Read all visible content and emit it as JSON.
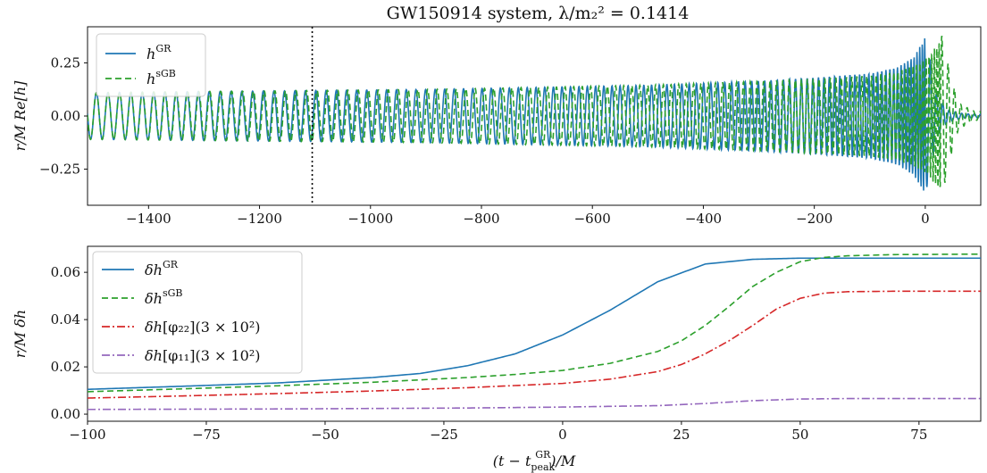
{
  "chart_data": [
    {
      "type": "line",
      "title": "GW150914 system, λ/m₂² = 0.1414",
      "ylabel": "r/M Re[h]",
      "xlabel": "",
      "xlim": [
        -1510,
        100
      ],
      "ylim": [
        -0.42,
        0.42
      ],
      "xticks": [
        -1400,
        -1200,
        -1000,
        -800,
        -600,
        -400,
        -200,
        0
      ],
      "yticks": [
        -0.25,
        0.0,
        0.25
      ],
      "xtick_labels": [
        "−1400",
        "−1200",
        "−1000",
        "−800",
        "−600",
        "−400",
        "−200",
        "0"
      ],
      "ytick_labels": [
        "−0.25",
        "0.00",
        "0.25"
      ],
      "vline_x": -1105,
      "legend_position": "upper-left",
      "grid": false,
      "series": [
        {
          "name": "h",
          "name_sup": "GR",
          "color": "#1f77b4",
          "style": "solid",
          "x": [
            -1500,
            -1300,
            -1100,
            -900,
            -700,
            -500,
            -300,
            -200,
            -100,
            -50,
            -20,
            0,
            10,
            20,
            40,
            70,
            90
          ],
          "amplitude": [
            0.11,
            0.115,
            0.12,
            0.125,
            0.135,
            0.145,
            0.165,
            0.18,
            0.2,
            0.23,
            0.28,
            0.37,
            0.25,
            0.1,
            0.03,
            0.01,
            0.01
          ]
        },
        {
          "name": "h",
          "name_sup": "sGB",
          "color": "#2ca02c",
          "style": "dashed",
          "x": [
            -1500,
            -1300,
            -1100,
            -900,
            -700,
            -500,
            -300,
            -200,
            -100,
            -50,
            -20,
            0,
            20,
            30,
            45,
            60,
            90
          ],
          "amplitude": [
            0.11,
            0.115,
            0.12,
            0.125,
            0.135,
            0.145,
            0.163,
            0.175,
            0.19,
            0.21,
            0.24,
            0.27,
            0.33,
            0.38,
            0.2,
            0.06,
            0.02
          ]
        }
      ]
    },
    {
      "type": "line",
      "title": "",
      "ylabel": "r/M δh",
      "xlabel": "(t − t_peak^GR)/M",
      "xlim": [
        -100,
        88
      ],
      "ylim": [
        -0.003,
        0.071
      ],
      "xticks": [
        -100,
        -75,
        -50,
        -25,
        0,
        25,
        50,
        75
      ],
      "yticks": [
        0.0,
        0.02,
        0.04,
        0.06
      ],
      "xtick_labels": [
        "−100",
        "−75",
        "−50",
        "−25",
        "0",
        "25",
        "50",
        "75"
      ],
      "ytick_labels": [
        "0.00",
        "0.02",
        "0.04",
        "0.06"
      ],
      "legend_position": "upper-left",
      "grid": false,
      "series": [
        {
          "name": "δh",
          "name_sup": "GR",
          "name_suffix": "",
          "color": "#1f77b4",
          "style": "solid",
          "x": [
            -100,
            -80,
            -60,
            -40,
            -30,
            -20,
            -10,
            0,
            10,
            20,
            30,
            40,
            50,
            60,
            70,
            88
          ],
          "y": [
            0.0105,
            0.0118,
            0.0132,
            0.0155,
            0.0172,
            0.0205,
            0.0255,
            0.0335,
            0.044,
            0.056,
            0.0635,
            0.0655,
            0.066,
            0.066,
            0.066,
            0.066
          ]
        },
        {
          "name": "δh",
          "name_sup": "sGB",
          "name_suffix": "",
          "color": "#2ca02c",
          "style": "dashed",
          "x": [
            -100,
            -80,
            -60,
            -40,
            -20,
            -10,
            0,
            10,
            20,
            25,
            30,
            35,
            40,
            45,
            50,
            55,
            60,
            70,
            88
          ],
          "y": [
            0.0095,
            0.0107,
            0.012,
            0.0135,
            0.0155,
            0.0168,
            0.0185,
            0.0215,
            0.0265,
            0.031,
            0.0375,
            0.0455,
            0.054,
            0.06,
            0.0645,
            0.0663,
            0.067,
            0.0675,
            0.0677
          ]
        },
        {
          "name": "δh",
          "name_sub": "[φ₂₂]",
          "name_suffix": "(3 × 10²)",
          "color": "#d62728",
          "style": "dashdot",
          "x": [
            -100,
            -80,
            -60,
            -40,
            -20,
            0,
            10,
            20,
            25,
            30,
            35,
            40,
            45,
            50,
            55,
            60,
            70,
            88
          ],
          "y": [
            0.0068,
            0.0077,
            0.0087,
            0.0098,
            0.0112,
            0.013,
            0.0148,
            0.018,
            0.021,
            0.0255,
            0.031,
            0.0375,
            0.0445,
            0.049,
            0.0512,
            0.0518,
            0.052,
            0.052
          ]
        },
        {
          "name": "δh",
          "name_sub": "[φ₁₁]",
          "name_suffix": "(3 × 10²)",
          "color": "#9467bd",
          "style": "dashdot",
          "x": [
            -100,
            -60,
            -20,
            0,
            20,
            30,
            40,
            50,
            60,
            88
          ],
          "y": [
            0.002,
            0.0022,
            0.0026,
            0.003,
            0.0036,
            0.0045,
            0.0057,
            0.0064,
            0.0066,
            0.0066
          ]
        }
      ]
    }
  ]
}
